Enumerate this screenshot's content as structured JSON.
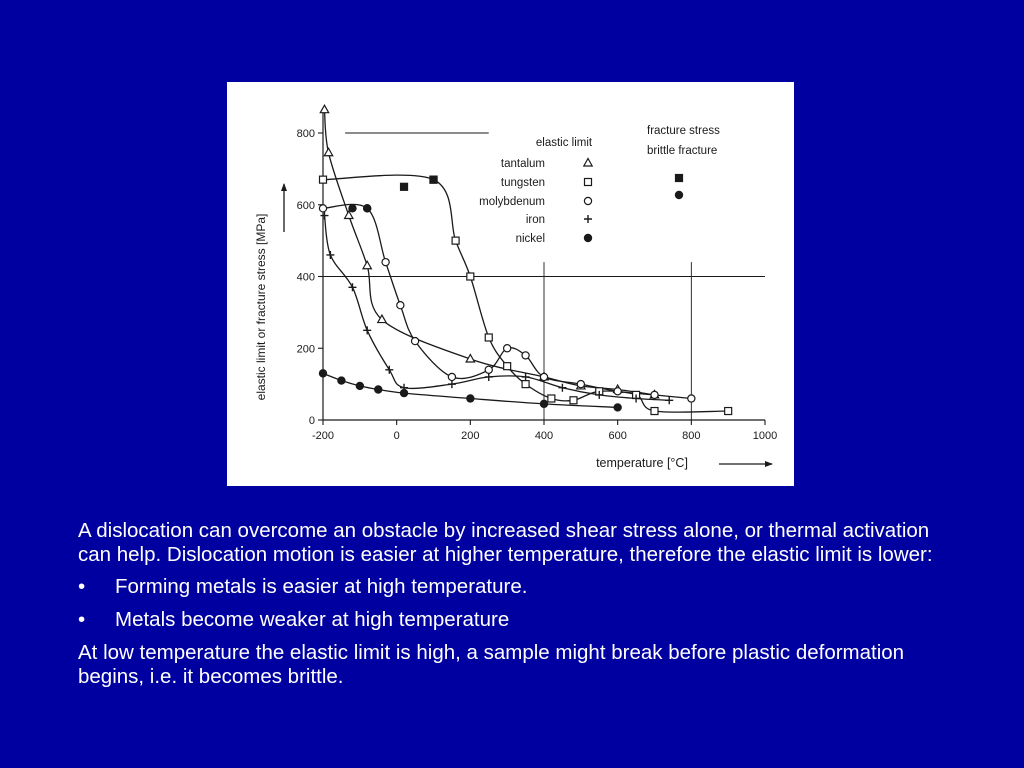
{
  "colors": {
    "background": "#0000a0",
    "text": "#ffffff",
    "figure_background": "#ffffff",
    "ink": "#1a1a1a"
  },
  "chart_data": {
    "type": "line",
    "xlabel": "temperature [°C]",
    "ylabel": "elastic limit or fracture stress [MPa]",
    "xlim": [
      -200,
      1000
    ],
    "ylim": [
      0,
      850
    ],
    "x_ticks": [
      "-200",
      "0",
      "200",
      "400",
      "600",
      "800",
      "1000"
    ],
    "y_ticks": [
      "0",
      "200",
      "400",
      "600",
      "800"
    ],
    "legend_headers": {
      "elastic_limit": "elastic limit",
      "fracture_line1": "fracture stress",
      "fracture_line2": "brittle fracture"
    },
    "legend_placement": "top-right",
    "series": [
      {
        "name": "tantalum",
        "marker": "triangle",
        "elastic_limit": [
          [
            -196,
            865
          ],
          [
            -185,
            745
          ],
          [
            -130,
            570
          ],
          [
            -80,
            430
          ],
          [
            -40,
            280
          ],
          [
            200,
            170
          ],
          [
            400,
            120
          ],
          [
            500,
            95
          ],
          [
            600,
            85
          ],
          [
            700,
            70
          ]
        ]
      },
      {
        "name": "tungsten",
        "marker": "square",
        "fracture_stress": [
          [
            20,
            650
          ],
          [
            100,
            670
          ]
        ],
        "elastic_limit": [
          [
            -200,
            670
          ],
          [
            100,
            670
          ],
          [
            160,
            500
          ],
          [
            200,
            400
          ],
          [
            250,
            230
          ],
          [
            300,
            150
          ],
          [
            350,
            100
          ],
          [
            420,
            60
          ],
          [
            480,
            55
          ],
          [
            550,
            80
          ],
          [
            650,
            70
          ],
          [
            700,
            25
          ],
          [
            900,
            25
          ]
        ]
      },
      {
        "name": "molybdenum",
        "marker": "circle",
        "fracture_stress": [
          [
            -120,
            590
          ],
          [
            -80,
            590
          ]
        ],
        "elastic_limit": [
          [
            -200,
            590
          ],
          [
            -80,
            590
          ],
          [
            -30,
            440
          ],
          [
            10,
            320
          ],
          [
            50,
            220
          ],
          [
            150,
            120
          ],
          [
            250,
            140
          ],
          [
            300,
            200
          ],
          [
            350,
            180
          ],
          [
            400,
            120
          ],
          [
            500,
            100
          ],
          [
            600,
            80
          ],
          [
            700,
            70
          ],
          [
            800,
            60
          ]
        ]
      },
      {
        "name": "iron",
        "marker": "plus",
        "elastic_limit": [
          [
            -196,
            570
          ],
          [
            -180,
            460
          ],
          [
            -120,
            370
          ],
          [
            -80,
            250
          ],
          [
            -20,
            140
          ],
          [
            20,
            90
          ],
          [
            150,
            100
          ],
          [
            250,
            120
          ],
          [
            350,
            120
          ],
          [
            450,
            90
          ],
          [
            550,
            70
          ],
          [
            650,
            60
          ],
          [
            740,
            55
          ]
        ]
      },
      {
        "name": "nickel",
        "marker": "dot",
        "fracture_stress": [
          [
            -200,
            130
          ],
          [
            -150,
            110
          ],
          [
            -100,
            95
          ],
          [
            -50,
            85
          ],
          [
            20,
            75
          ],
          [
            200,
            60
          ],
          [
            400,
            45
          ],
          [
            600,
            35
          ]
        ]
      }
    ],
    "reference_lines": [
      {
        "orientation": "horizontal",
        "y": 800,
        "x_range": [
          -140,
          250
        ]
      },
      {
        "orientation": "horizontal",
        "y": 400,
        "x_range": [
          -200,
          1000
        ]
      },
      {
        "orientation": "vertical",
        "x": 400,
        "y_range": [
          0,
          440
        ]
      },
      {
        "orientation": "vertical",
        "x": 800,
        "y_range": [
          0,
          440
        ]
      }
    ]
  },
  "text": {
    "paragraph1": "A dislocation can overcome an obstacle by increased shear stress alone, or thermal activation can help. Dislocation motion is easier at higher temperature, therefore the elastic limit is lower:",
    "bullet_symbol": "•",
    "bullets": [
      "Forming metals is easier at high temperature.",
      "Metals become weaker at high temperature"
    ],
    "paragraph2": "At low temperature the elastic limit is high, a sample might break before plastic deformation begins, i.e. it becomes brittle."
  }
}
